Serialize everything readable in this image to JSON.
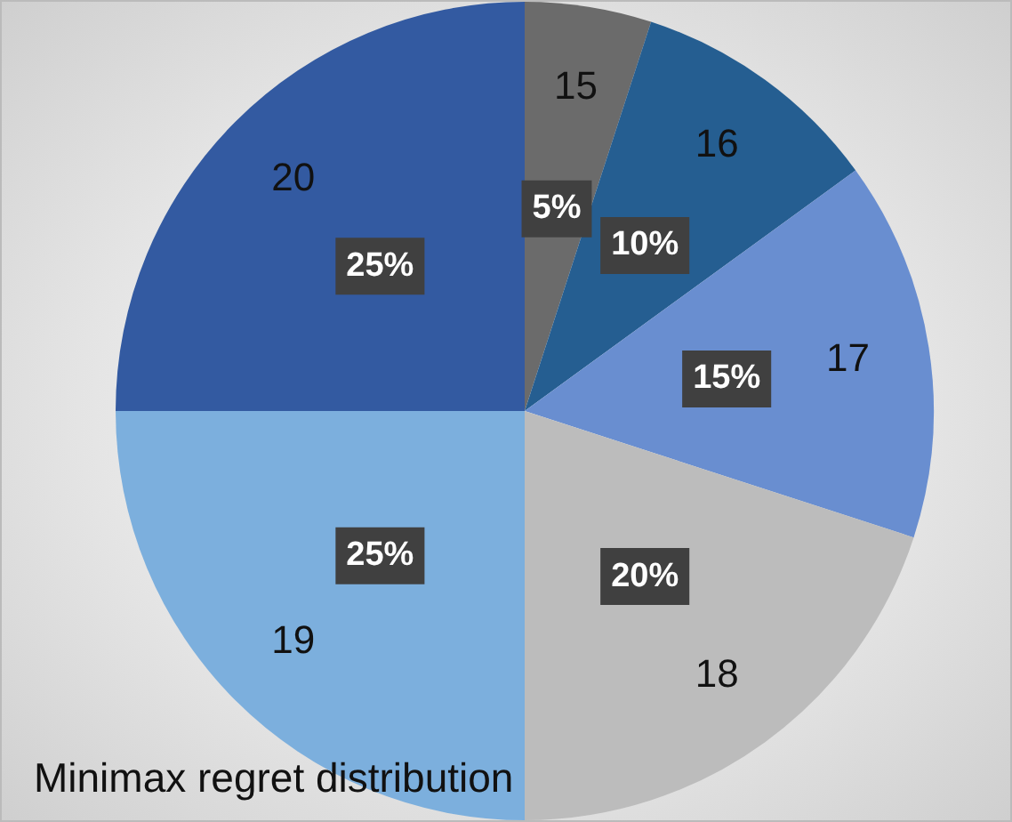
{
  "chart_data": {
    "type": "pie",
    "title": "Minimax regret distribution",
    "categories": [
      "15",
      "16",
      "17",
      "18",
      "19",
      "20"
    ],
    "values": [
      5,
      10,
      15,
      20,
      25,
      25
    ],
    "value_labels": [
      "5%",
      "10%",
      "15%",
      "20%",
      "25%",
      "25%"
    ],
    "colors": [
      "#6b6b6b",
      "#255e91",
      "#698ed0",
      "#bcbcbc",
      "#7cafdd",
      "#335aa1"
    ],
    "legend": false
  }
}
